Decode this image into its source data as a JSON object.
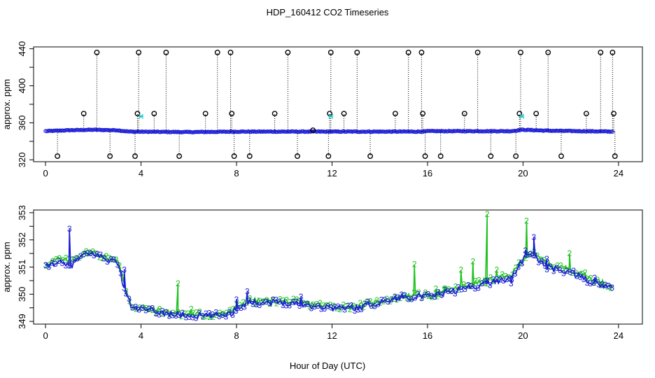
{
  "figure": {
    "title": "HDP_160412  CO2 Timeseries",
    "xlabel": "Hour of Day (UTC)"
  },
  "colors": {
    "blue": "#1a1ad6",
    "green": "#1fc21f",
    "black": "#000000",
    "cyan": "#22c8c8"
  },
  "chart_data": [
    {
      "type": "scatter",
      "panel": "top",
      "ylabel": "approx. ppm",
      "xlim": [
        -0.5,
        25
      ],
      "ylim": [
        318,
        442
      ],
      "xticks": [
        0,
        4,
        8,
        12,
        16,
        20,
        24
      ],
      "yticks": [
        320,
        360,
        400,
        440
      ],
      "series": [
        {
          "marker": "blue circles (dense baseline)",
          "x_range": [
            0,
            23.8
          ],
          "baseline": [
            [
              0,
              351
            ],
            [
              1,
              352
            ],
            [
              2,
              352.5
            ],
            [
              3,
              352
            ],
            [
              3.5,
              350.5
            ],
            [
              6,
              350
            ],
            [
              8,
              350.5
            ],
            [
              12,
              350.5
            ],
            [
              15.8,
              350.5
            ],
            [
              16,
              351
            ],
            [
              19.5,
              351
            ],
            [
              20,
              352.5
            ],
            [
              21,
              351.5
            ],
            [
              23.8,
              350.5
            ]
          ]
        },
        {
          "marker": "black circles with dotted drop lines",
          "x": [
            0.5,
            1.6,
            2.15,
            2.7,
            3.75,
            3.85,
            3.9,
            4.55,
            5.05,
            5.6,
            6.7,
            7.2,
            7.75,
            7.8,
            7.9,
            8.55,
            9.6,
            10.15,
            10.55,
            11.2,
            11.85,
            11.9,
            11.95,
            12.5,
            13.05,
            13.6,
            14.65,
            15.2,
            15.75,
            15.8,
            15.9,
            16.55,
            17.55,
            18.1,
            18.65,
            19.7,
            19.85,
            19.9,
            20.55,
            21.05,
            21.6,
            22.65,
            23.25,
            23.75,
            23.8,
            23.85
          ],
          "y": [
            324,
            370,
            436,
            324,
            324,
            370,
            436,
            370,
            436,
            324,
            370,
            436,
            436,
            370,
            324,
            324,
            370,
            436,
            324,
            352,
            324,
            370,
            436,
            370,
            436,
            324,
            370,
            436,
            436,
            370,
            324,
            324,
            370,
            436,
            324,
            324,
            370,
            436,
            370,
            436,
            324,
            370,
            436,
            436,
            370,
            324
          ]
        },
        {
          "marker": "cyan crosses",
          "x": [
            4.0,
            11.95,
            19.95
          ],
          "y": [
            367,
            367,
            367
          ]
        }
      ]
    },
    {
      "type": "scatter",
      "panel": "bottom",
      "ylabel": "approx. ppm",
      "xlim": [
        -0.5,
        25
      ],
      "ylim": [
        348.9,
        353.1
      ],
      "xticks": [
        0,
        4,
        8,
        12,
        16,
        20,
        24
      ],
      "yticks": [
        349,
        350,
        351,
        352,
        353
      ],
      "series": [
        {
          "name": "3",
          "marker": "blue '3' labels",
          "baseline": [
            [
              0,
              351
            ],
            [
              0.5,
              351.2
            ],
            [
              1,
              351
            ],
            [
              1.5,
              351.4
            ],
            [
              2,
              351.5
            ],
            [
              2.5,
              351.3
            ],
            [
              3,
              351.2
            ],
            [
              3.3,
              350.2
            ],
            [
              3.6,
              349.5
            ],
            [
              4,
              349.45
            ],
            [
              5,
              349.3
            ],
            [
              6,
              349.2
            ],
            [
              7,
              349.2
            ],
            [
              7.8,
              349.3
            ],
            [
              8,
              349.5
            ],
            [
              8.5,
              349.7
            ],
            [
              9,
              349.7
            ],
            [
              10,
              349.7
            ],
            [
              11,
              349.6
            ],
            [
              12,
              349.5
            ],
            [
              13,
              349.5
            ],
            [
              14,
              349.7
            ],
            [
              15,
              349.9
            ],
            [
              16,
              349.9
            ],
            [
              17,
              350.1
            ],
            [
              18,
              350.3
            ],
            [
              19,
              350.5
            ],
            [
              19.5,
              350.6
            ],
            [
              20,
              351.3
            ],
            [
              20.3,
              351.5
            ],
            [
              21,
              351
            ],
            [
              22,
              350.8
            ],
            [
              22.5,
              350.6
            ],
            [
              23,
              350.4
            ],
            [
              23.8,
              350.2
            ]
          ],
          "spikes": [
            [
              1.0,
              352.4
            ],
            [
              3.3,
              350.9
            ],
            [
              8.0,
              349.8
            ],
            [
              8.45,
              350.1
            ],
            [
              10.7,
              349.9
            ],
            [
              18.5,
              350.5
            ],
            [
              19.5,
              350.4
            ],
            [
              20.1,
              351.6
            ],
            [
              20.45,
              352.1
            ],
            [
              21,
              351.3
            ],
            [
              23,
              350.6
            ]
          ]
        },
        {
          "name": "2",
          "marker": "green '2' labels",
          "baseline": [
            [
              0,
              351.1
            ],
            [
              0.5,
              351.3
            ],
            [
              1,
              351.2
            ],
            [
              1.5,
              351.5
            ],
            [
              2,
              351.55
            ],
            [
              2.5,
              351.35
            ],
            [
              3,
              351.25
            ],
            [
              3.3,
              350.3
            ],
            [
              3.6,
              349.55
            ],
            [
              4,
              349.5
            ],
            [
              5,
              349.35
            ],
            [
              6,
              349.25
            ],
            [
              7,
              349.25
            ],
            [
              7.8,
              349.35
            ],
            [
              8,
              349.55
            ],
            [
              8.5,
              349.75
            ],
            [
              9,
              349.75
            ],
            [
              10,
              349.75
            ],
            [
              11,
              349.65
            ],
            [
              12,
              349.55
            ],
            [
              13,
              349.55
            ],
            [
              14,
              349.75
            ],
            [
              15,
              349.95
            ],
            [
              16,
              349.95
            ],
            [
              17,
              350.15
            ],
            [
              18,
              350.4
            ],
            [
              19,
              350.6
            ],
            [
              19.5,
              350.7
            ],
            [
              20,
              351.35
            ],
            [
              20.3,
              351.55
            ],
            [
              21,
              351.1
            ],
            [
              22,
              350.9
            ],
            [
              22.5,
              350.7
            ],
            [
              23,
              350.5
            ],
            [
              23.8,
              350.3
            ]
          ],
          "spikes": [
            [
              5.55,
              350.4
            ],
            [
              6.1,
              349.45
            ],
            [
              15.45,
              351.1
            ],
            [
              16.35,
              350.2
            ],
            [
              16.7,
              350.2
            ],
            [
              17.4,
              350.9
            ],
            [
              17.9,
              351.2
            ],
            [
              18.5,
              352.95
            ],
            [
              18.9,
              350.9
            ],
            [
              20.15,
              352.7
            ],
            [
              21.95,
              351.5
            ],
            [
              22.6,
              350.8
            ]
          ]
        }
      ]
    }
  ]
}
